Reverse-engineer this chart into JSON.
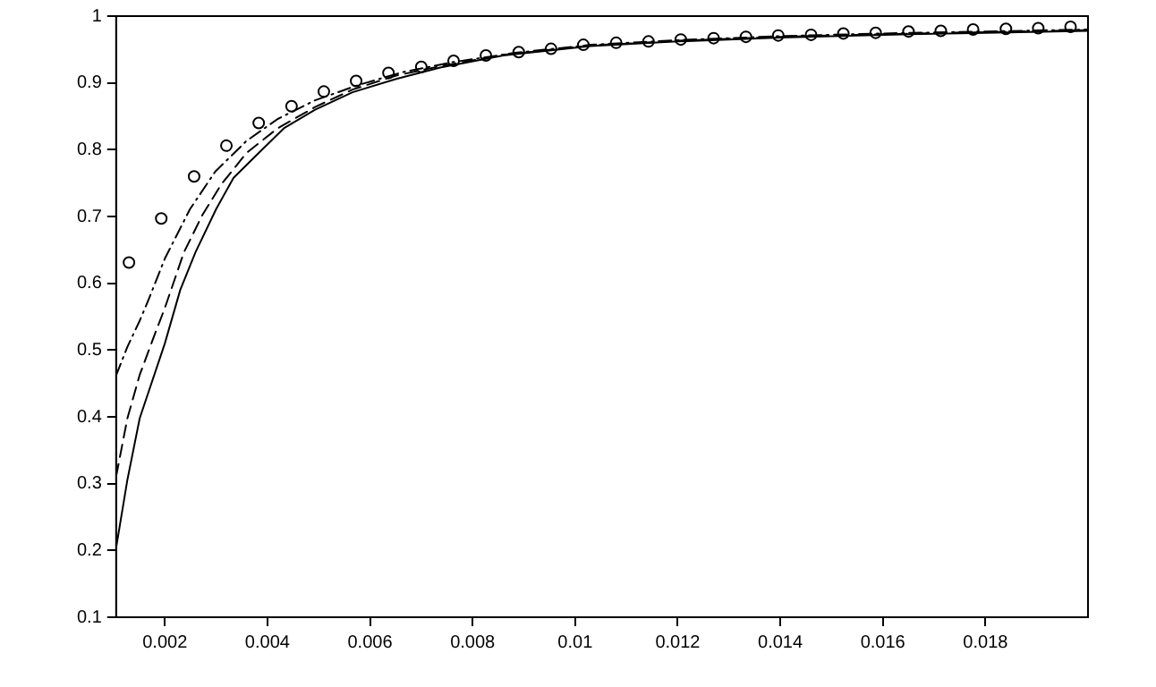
{
  "chart_data": {
    "type": "line",
    "xlim": [
      0.00105,
      0.02
    ],
    "ylim": [
      0.1,
      1
    ],
    "xticks": [
      0.002,
      0.004,
      0.006,
      0.008,
      0.01,
      0.012,
      0.014,
      0.016,
      0.018
    ],
    "yticks": [
      0.1,
      0.2,
      0.3,
      0.4,
      0.5,
      0.6,
      0.7,
      0.8,
      0.9,
      1
    ],
    "grid": false,
    "legend": false,
    "marker": "none",
    "series": [
      {
        "type": "line",
        "line_style": "solid",
        "color": "#000000",
        "x": [
          0.00105,
          0.00127,
          0.00151,
          0.002,
          0.0023,
          0.0026,
          0.003,
          0.00334,
          0.00383,
          0.00432,
          0.00493,
          0.00566,
          0.00651,
          0.00737,
          0.0086,
          0.0103,
          0.012,
          0.014,
          0.016,
          0.018,
          0.02
        ],
        "values": [
          0.204,
          0.306,
          0.398,
          0.51,
          0.59,
          0.647,
          0.711,
          0.758,
          0.795,
          0.832,
          0.86,
          0.886,
          0.906,
          0.923,
          0.941,
          0.955,
          0.962,
          0.968,
          0.972,
          0.975,
          0.978
        ]
      },
      {
        "type": "line",
        "line_style": "dashed",
        "color": "#000000",
        "x": [
          0.00105,
          0.00127,
          0.00151,
          0.00182,
          0.002,
          0.00237,
          0.00273,
          0.0031,
          0.00359,
          0.0042,
          0.00493,
          0.00566,
          0.00651,
          0.00737,
          0.0086,
          0.0103,
          0.012,
          0.014,
          0.016,
          0.018,
          0.02
        ],
        "values": [
          0.311,
          0.398,
          0.463,
          0.527,
          0.563,
          0.646,
          0.702,
          0.748,
          0.795,
          0.832,
          0.864,
          0.89,
          0.911,
          0.925,
          0.942,
          0.956,
          0.963,
          0.969,
          0.973,
          0.976,
          0.979
        ]
      },
      {
        "type": "line",
        "line_style": "dashdot",
        "color": "#000000",
        "x": [
          0.00105,
          0.00127,
          0.00151,
          0.00169,
          0.002,
          0.00249,
          0.00298,
          0.00359,
          0.0042,
          0.00493,
          0.00578,
          0.00663,
          0.00761,
          0.00883,
          0.0103,
          0.012,
          0.014,
          0.016,
          0.018,
          0.02
        ],
        "values": [
          0.462,
          0.505,
          0.544,
          0.577,
          0.637,
          0.711,
          0.767,
          0.813,
          0.846,
          0.874,
          0.897,
          0.916,
          0.931,
          0.945,
          0.957,
          0.964,
          0.97,
          0.974,
          0.977,
          0.98
        ]
      },
      {
        "type": "scatter",
        "marker": "circle",
        "color": "#000000",
        "x": [
          0.0013,
          0.00193,
          0.00257,
          0.0032,
          0.00383,
          0.00447,
          0.0051,
          0.00573,
          0.00636,
          0.007,
          0.00763,
          0.00826,
          0.0089,
          0.00953,
          0.01016,
          0.0108,
          0.01143,
          0.01206,
          0.0127,
          0.01333,
          0.01396,
          0.0146,
          0.01523,
          0.01586,
          0.0165,
          0.01713,
          0.01776,
          0.0184,
          0.01903,
          0.01966
        ],
        "values": [
          0.631,
          0.697,
          0.76,
          0.806,
          0.84,
          0.865,
          0.887,
          0.903,
          0.915,
          0.924,
          0.933,
          0.941,
          0.946,
          0.951,
          0.957,
          0.96,
          0.962,
          0.965,
          0.967,
          0.969,
          0.971,
          0.972,
          0.974,
          0.975,
          0.977,
          0.978,
          0.98,
          0.981,
          0.982,
          0.984
        ]
      }
    ]
  }
}
